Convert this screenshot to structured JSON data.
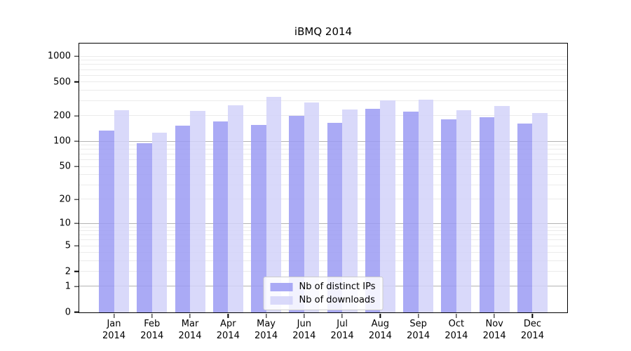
{
  "chart_data": {
    "type": "bar",
    "title": "iBMQ 2014",
    "xlabel": "",
    "ylabel": "",
    "categories": [
      {
        "month": "Jan",
        "year": "2014"
      },
      {
        "month": "Feb",
        "year": "2014"
      },
      {
        "month": "Mar",
        "year": "2014"
      },
      {
        "month": "Apr",
        "year": "2014"
      },
      {
        "month": "May",
        "year": "2014"
      },
      {
        "month": "Jun",
        "year": "2014"
      },
      {
        "month": "Jul",
        "year": "2014"
      },
      {
        "month": "Aug",
        "year": "2014"
      },
      {
        "month": "Sep",
        "year": "2014"
      },
      {
        "month": "Oct",
        "year": "2014"
      },
      {
        "month": "Nov",
        "year": "2014"
      },
      {
        "month": "Dec",
        "year": "2014"
      }
    ],
    "series": [
      {
        "name": "Nb of distinct IPs",
        "color": "#9b9bf3",
        "alpha": 0.85,
        "values": [
          135,
          96,
          154,
          174,
          157,
          202,
          168,
          246,
          228,
          184,
          195,
          162
        ]
      },
      {
        "name": "Nb of downloads",
        "color": "#d2d2f9",
        "alpha": 0.85,
        "values": [
          234,
          127,
          232,
          266,
          340,
          292,
          238,
          307,
          314,
          234,
          261,
          219
        ]
      }
    ],
    "y_axis": {
      "scale": "log1p",
      "max": 1400,
      "tick_values": [
        0,
        1,
        2,
        5,
        10,
        20,
        50,
        100,
        200,
        500,
        1000
      ],
      "tick_labels": [
        "0",
        "1",
        "2",
        "5",
        "10",
        "20",
        "50",
        "100",
        "200",
        "500",
        "1000"
      ],
      "major_gridlines": [
        1,
        10,
        100
      ],
      "minor_gridlines": [
        2,
        3,
        4,
        5,
        6,
        7,
        8,
        9,
        20,
        30,
        40,
        50,
        60,
        70,
        80,
        90,
        200,
        300,
        400,
        500,
        600,
        700,
        800,
        900,
        1000
      ]
    },
    "grid": true,
    "legend": {
      "position": "bottom-center"
    }
  }
}
